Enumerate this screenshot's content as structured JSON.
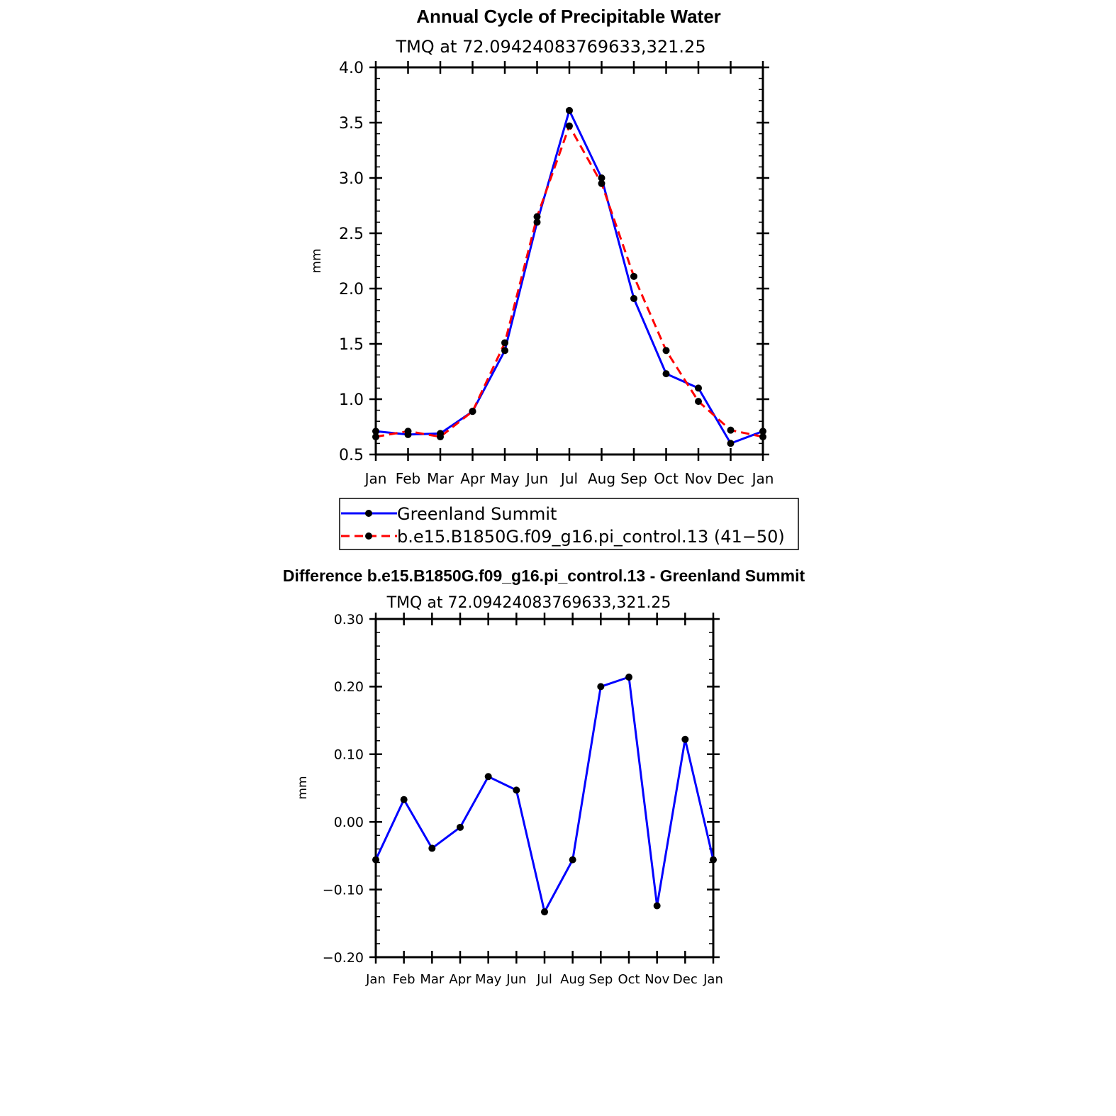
{
  "chart_data": [
    {
      "type": "line",
      "title": "Annual Cycle of Precipitable Water",
      "subtitle": "TMQ at 72.09424083769633,321.25",
      "ylabel": "mm",
      "ylim": [
        0.5,
        4.0
      ],
      "yticks": [
        "0.5",
        "1.0",
        "1.5",
        "2.0",
        "2.5",
        "3.0",
        "3.5",
        "4.0"
      ],
      "ytick_values": [
        0.5,
        1.0,
        1.5,
        2.0,
        2.5,
        3.0,
        3.5,
        4.0
      ],
      "categories": [
        "Jan",
        "Feb",
        "Mar",
        "Apr",
        "May",
        "Jun",
        "Jul",
        "Aug",
        "Sep",
        "Oct",
        "Nov",
        "Dec",
        "Jan"
      ],
      "grid": false,
      "legend_position": "bottom",
      "series": [
        {
          "name": "Greenland Summit",
          "color": "#0000ff",
          "style": "solid",
          "values": [
            0.71,
            0.68,
            0.69,
            0.89,
            1.44,
            2.6,
            3.61,
            3.0,
            1.91,
            1.23,
            1.1,
            0.6,
            0.71
          ]
        },
        {
          "name": "b.e15.B1850G.f09_g16.pi_control.13 (41−50)",
          "color": "#ff0000",
          "style": "dashed",
          "values": [
            0.66,
            0.71,
            0.66,
            0.89,
            1.51,
            2.65,
            3.47,
            2.95,
            2.11,
            1.44,
            0.98,
            0.72,
            0.66
          ]
        }
      ]
    },
    {
      "type": "line",
      "title": "Difference b.e15.B1850G.f09_g16.pi_control.13 - Greenland Summit",
      "subtitle": "TMQ at 72.09424083769633,321.25",
      "ylabel": "mm",
      "ylim": [
        -0.2,
        0.3
      ],
      "yticks": [
        "−0.20",
        "−0.10",
        "0.00",
        "0.10",
        "0.20",
        "0.30"
      ],
      "ytick_values": [
        -0.2,
        -0.1,
        0.0,
        0.1,
        0.2,
        0.3
      ],
      "categories": [
        "Jan",
        "Feb",
        "Mar",
        "Apr",
        "May",
        "Jun",
        "Jul",
        "Aug",
        "Sep",
        "Oct",
        "Nov",
        "Dec",
        "Jan"
      ],
      "grid": false,
      "series": [
        {
          "color": "#0000ff",
          "style": "solid",
          "values": [
            -0.056,
            0.033,
            -0.039,
            -0.008,
            0.067,
            0.047,
            -0.133,
            -0.056,
            0.2,
            0.214,
            -0.124,
            0.122,
            -0.056
          ]
        }
      ]
    }
  ]
}
